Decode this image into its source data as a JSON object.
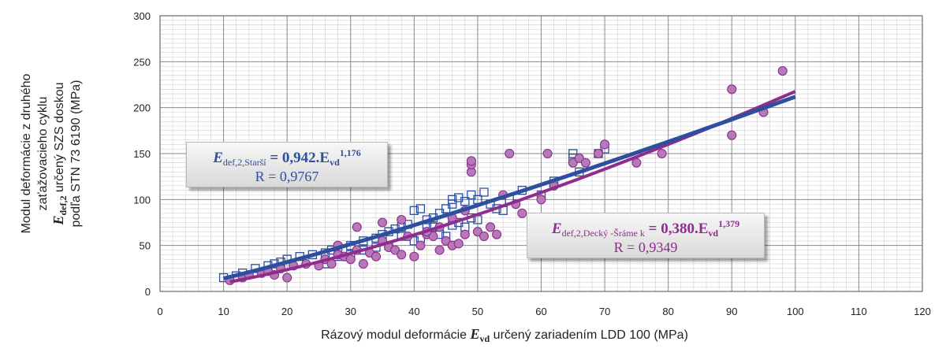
{
  "chart_data": {
    "type": "scatter",
    "y_axis_title_lines": [
      "Modul deformácie z druhého",
      "zaťažovacieho cyklu",
      "E|def,2| určený SZS doskou",
      "podľa STN 73 6190 (MPa)"
    ],
    "x_axis_title": {
      "pre": "Rázový modul deformácie",
      "sym": "E",
      "sub": "vd",
      "post": "určený zariadením LDD 100  (MPa)"
    },
    "xlim": [
      0,
      120
    ],
    "ylim": [
      0,
      300
    ],
    "x_ticks": [
      "0",
      "10",
      "20",
      "30",
      "40",
      "50",
      "60",
      "70",
      "80",
      "90",
      "100",
      "110",
      "120"
    ],
    "y_ticks": [
      "0",
      "50",
      "100",
      "150",
      "200",
      "250",
      "300"
    ],
    "grid": true,
    "colors": {
      "blue": "#2e4f9e",
      "purple": "#8e2d8e",
      "marker_fill": "#b57ab5"
    },
    "series": [
      {
        "name": "Starší",
        "marker": "open-square",
        "fit": {
          "a": 0.942,
          "b": 1.176,
          "x_range": [
            10,
            100
          ]
        },
        "equation": {
          "lhs": "E",
          "lhs_sub": "def,2,Starší",
          "rhs": "= 0,942.E",
          "rhs_sub": "vd",
          "exp": "1,176",
          "r": "R = 0,9767"
        },
        "points": [
          [
            10,
            15
          ],
          [
            12,
            17
          ],
          [
            13,
            20
          ],
          [
            15,
            25
          ],
          [
            17,
            28
          ],
          [
            18,
            30
          ],
          [
            19,
            32
          ],
          [
            20,
            35
          ],
          [
            22,
            38
          ],
          [
            24,
            40
          ],
          [
            26,
            42
          ],
          [
            27,
            45
          ],
          [
            28,
            48
          ],
          [
            30,
            50
          ],
          [
            32,
            55
          ],
          [
            34,
            58
          ],
          [
            35,
            62
          ],
          [
            36,
            65
          ],
          [
            37,
            68
          ],
          [
            38,
            70
          ],
          [
            39,
            73
          ],
          [
            40,
            88
          ],
          [
            41,
            90
          ],
          [
            42,
            78
          ],
          [
            43,
            80
          ],
          [
            44,
            85
          ],
          [
            45,
            90
          ],
          [
            46,
            95
          ],
          [
            46,
            100
          ],
          [
            47,
            102
          ],
          [
            48,
            98
          ],
          [
            49,
            105
          ],
          [
            50,
            100
          ],
          [
            51,
            108
          ],
          [
            52,
            95
          ],
          [
            53,
            90
          ],
          [
            55,
            100
          ],
          [
            57,
            110
          ],
          [
            60,
            105
          ],
          [
            62,
            120
          ],
          [
            65,
            150
          ],
          [
            65,
            145
          ],
          [
            66,
            130
          ],
          [
            69,
            150
          ],
          [
            70,
            155
          ],
          [
            45,
            60
          ],
          [
            44,
            62
          ],
          [
            43,
            70
          ],
          [
            42,
            72
          ],
          [
            41,
            58
          ],
          [
            40,
            55
          ],
          [
            38,
            60
          ],
          [
            36,
            50
          ],
          [
            34,
            48
          ],
          [
            32,
            45
          ],
          [
            30,
            40
          ],
          [
            28,
            38
          ],
          [
            26,
            30
          ],
          [
            46,
            72
          ],
          [
            47,
            75
          ],
          [
            48,
            70
          ],
          [
            49,
            80
          ],
          [
            50,
            78
          ],
          [
            54,
            88
          ]
        ]
      },
      {
        "name": "Decký-Šrámek",
        "marker": "filled-circle",
        "fit": {
          "a": 0.38,
          "b": 1.379,
          "x_range": [
            11,
            100
          ]
        },
        "equation": {
          "lhs": "E",
          "lhs_sub": "def,2,Decký -Šráme k",
          "rhs": "= 0,380.E",
          "rhs_sub": "vd",
          "exp": "1,379",
          "r": "R = 0,9349"
        },
        "points": [
          [
            11,
            12
          ],
          [
            13,
            15
          ],
          [
            14,
            18
          ],
          [
            16,
            20
          ],
          [
            17,
            22
          ],
          [
            18,
            18
          ],
          [
            19,
            25
          ],
          [
            20,
            15
          ],
          [
            21,
            28
          ],
          [
            23,
            30
          ],
          [
            25,
            28
          ],
          [
            26,
            35
          ],
          [
            27,
            30
          ],
          [
            28,
            40
          ],
          [
            29,
            38
          ],
          [
            30,
            35
          ],
          [
            31,
            45
          ],
          [
            32,
            30
          ],
          [
            33,
            42
          ],
          [
            34,
            38
          ],
          [
            35,
            55
          ],
          [
            36,
            48
          ],
          [
            37,
            45
          ],
          [
            38,
            40
          ],
          [
            39,
            60
          ],
          [
            40,
            38
          ],
          [
            41,
            50
          ],
          [
            42,
            62
          ],
          [
            43,
            60
          ],
          [
            44,
            70
          ],
          [
            45,
            55
          ],
          [
            46,
            50
          ],
          [
            47,
            52
          ],
          [
            48,
            62
          ],
          [
            49,
            130
          ],
          [
            49,
            138
          ],
          [
            49,
            142
          ],
          [
            50,
            65
          ],
          [
            51,
            60
          ],
          [
            52,
            70
          ],
          [
            53,
            62
          ],
          [
            54,
            105
          ],
          [
            55,
            150
          ],
          [
            56,
            95
          ],
          [
            57,
            85
          ],
          [
            60,
            100
          ],
          [
            61,
            150
          ],
          [
            62,
            115
          ],
          [
            65,
            140
          ],
          [
            66,
            145
          ],
          [
            67,
            140
          ],
          [
            69,
            150
          ],
          [
            70,
            160
          ],
          [
            75,
            140
          ],
          [
            79,
            150
          ],
          [
            90,
            220
          ],
          [
            90,
            170
          ],
          [
            95,
            195
          ],
          [
            98,
            240
          ],
          [
            31,
            70
          ],
          [
            35,
            75
          ],
          [
            38,
            78
          ],
          [
            42,
            65
          ],
          [
            44,
            45
          ],
          [
            46,
            80
          ],
          [
            48,
            88
          ],
          [
            28,
            50
          ]
        ]
      }
    ]
  }
}
